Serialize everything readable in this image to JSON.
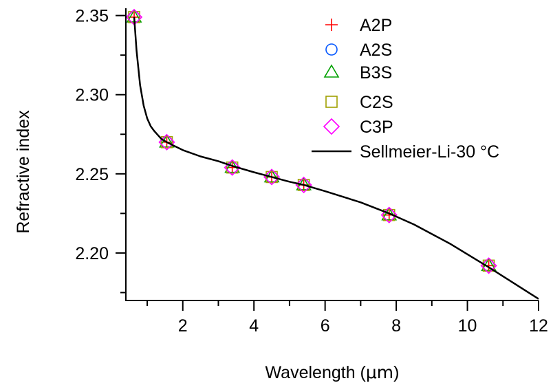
{
  "chart_data": {
    "type": "scatter",
    "xlabel_prefix": "Wavelength (",
    "xlabel_unit": "μm",
    "xlabel_suffix": ")",
    "ylabel": "Refractive index",
    "xlim": [
      0.4,
      12
    ],
    "ylim": [
      2.17,
      2.352
    ],
    "x_ticks": [
      2,
      4,
      6,
      8,
      10,
      12
    ],
    "x_tick_labels": [
      "2",
      "4",
      "6",
      "8",
      "10",
      "12"
    ],
    "y_ticks": [
      2.2,
      2.25,
      2.3,
      2.35
    ],
    "y_tick_labels": [
      "2.20",
      "2.25",
      "2.30",
      "2.35"
    ],
    "grid": false,
    "legend_position": "top-right",
    "series": [
      {
        "name": "A2P",
        "marker": "plus",
        "color": "#ff0000",
        "x": [
          0.633,
          1.55,
          3.39,
          4.5,
          5.4,
          7.8,
          10.6
        ],
        "y": [
          2.349,
          2.27,
          2.254,
          2.248,
          2.243,
          2.224,
          2.192
        ]
      },
      {
        "name": "A2S",
        "marker": "circle",
        "color": "#0055ff",
        "x": [
          0.633,
          1.55,
          3.39,
          4.5,
          5.4,
          7.8,
          10.6
        ],
        "y": [
          2.349,
          2.27,
          2.254,
          2.248,
          2.243,
          2.224,
          2.192
        ]
      },
      {
        "name": "B3S",
        "marker": "triangle",
        "color": "#00a000",
        "x": [
          0.633,
          1.55,
          3.39,
          4.5,
          5.4,
          7.8,
          10.6
        ],
        "y": [
          2.349,
          2.27,
          2.254,
          2.248,
          2.243,
          2.224,
          2.192
        ]
      },
      {
        "name": "C2S",
        "marker": "square",
        "color": "#a0a000",
        "x": [
          0.633,
          1.55,
          3.39,
          4.5,
          5.4,
          7.8,
          10.6
        ],
        "y": [
          2.349,
          2.27,
          2.254,
          2.248,
          2.243,
          2.224,
          2.192
        ]
      },
      {
        "name": "C3P",
        "marker": "diamond",
        "color": "#ff00ff",
        "x": [
          0.633,
          1.55,
          3.39,
          4.5,
          5.4,
          7.8,
          10.6
        ],
        "y": [
          2.349,
          2.27,
          2.254,
          2.248,
          2.243,
          2.224,
          2.192
        ]
      }
    ],
    "curve": {
      "name": "Sellmeier-Li-30 °C",
      "color": "#000000",
      "x": [
        0.633,
        0.7,
        0.8,
        0.9,
        1.0,
        1.1,
        1.2,
        1.4,
        1.55,
        2.0,
        2.5,
        3.0,
        3.39,
        4.0,
        4.5,
        5.0,
        5.4,
        6.0,
        7.0,
        7.8,
        8.5,
        9.5,
        10.6,
        11.3,
        12.0
      ],
      "y": [
        2.349,
        2.328,
        2.306,
        2.293,
        2.285,
        2.28,
        2.277,
        2.272,
        2.27,
        2.265,
        2.261,
        2.258,
        2.255,
        2.251,
        2.248,
        2.245,
        2.243,
        2.239,
        2.232,
        2.225,
        2.218,
        2.206,
        2.191,
        2.181,
        2.171
      ]
    }
  }
}
